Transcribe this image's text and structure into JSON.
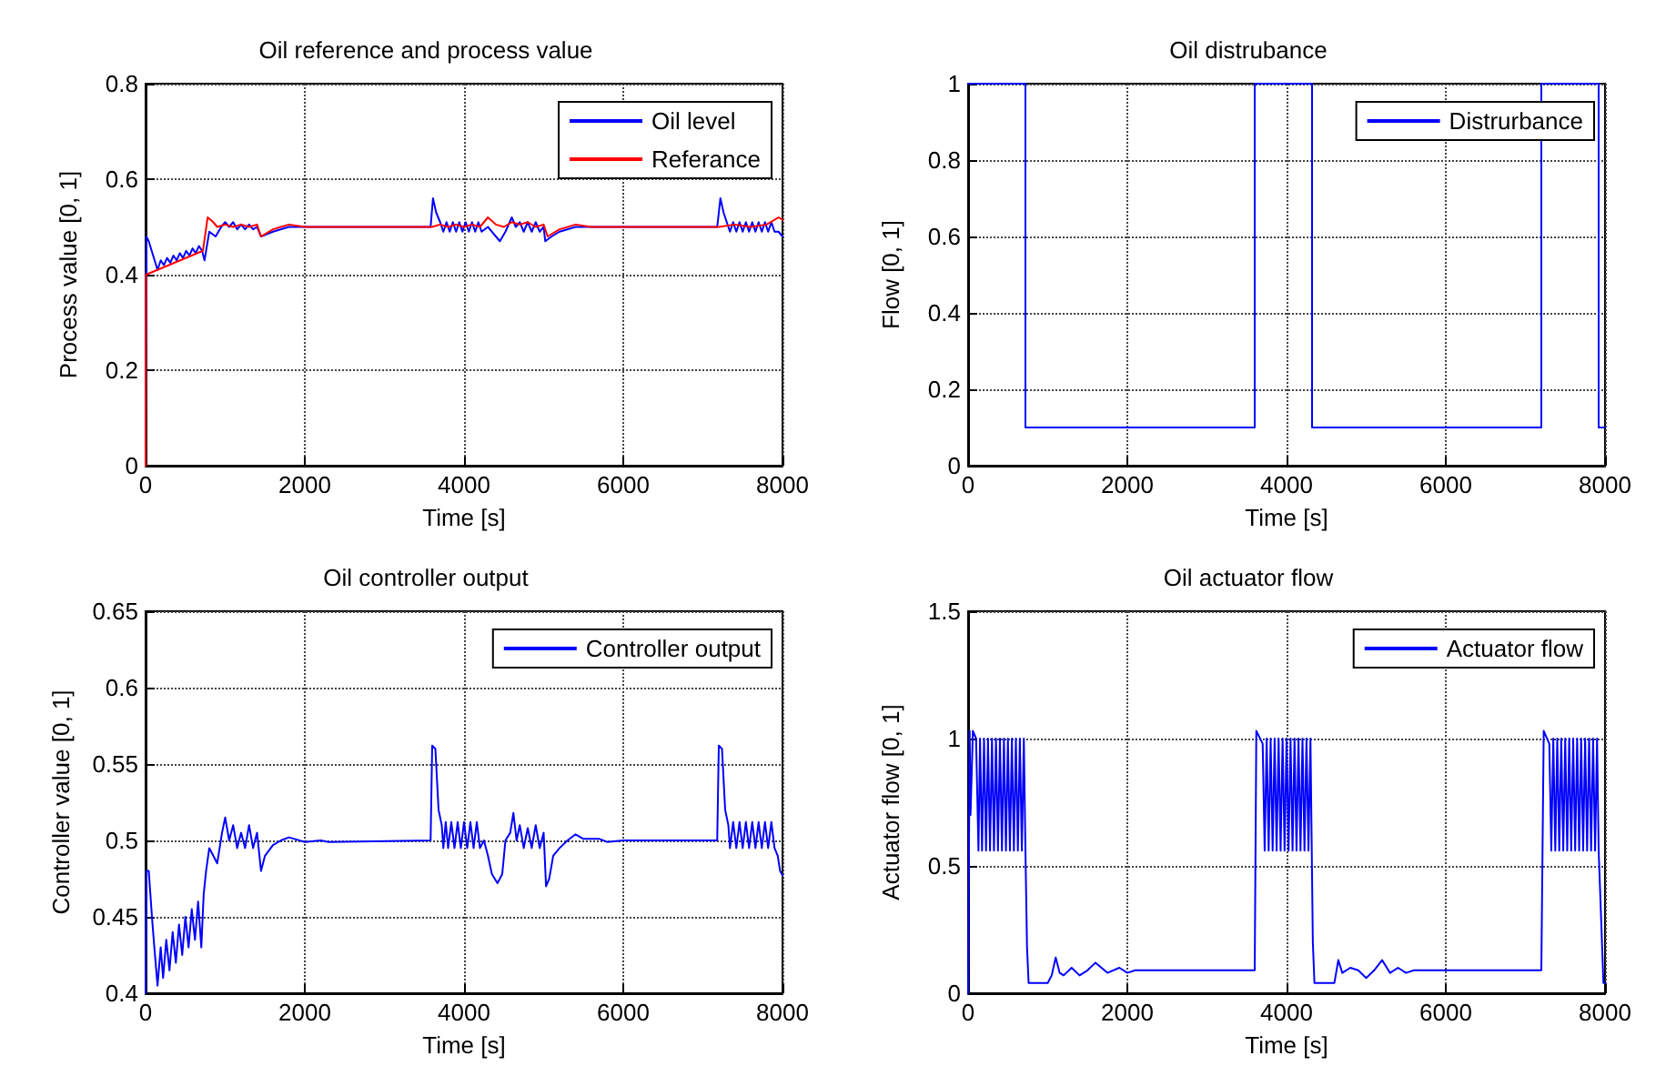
{
  "chart_data": [
    {
      "type": "line",
      "title": "Oil reference and process value",
      "xlabel": "Time [s]",
      "ylabel": "Process value [0, 1]",
      "xlim": [
        0,
        8000
      ],
      "xticks": [
        0,
        2000,
        4000,
        6000,
        8000
      ],
      "ylim": [
        0,
        0.8
      ],
      "yticks": [
        0,
        0.2,
        0.4,
        0.6,
        0.8
      ],
      "grid": true,
      "legend": "top right",
      "marker": "none",
      "line_style": "solid",
      "series": [
        {
          "name": "Oil level",
          "color": "#0000ff",
          "x": [
            0,
            10,
            40,
            150,
            190,
            230,
            270,
            310,
            350,
            390,
            430,
            470,
            510,
            550,
            590,
            630,
            670,
            710,
            740,
            800,
            880,
            950,
            1000,
            1050,
            1100,
            1150,
            1200,
            1250,
            1300,
            1350,
            1400,
            1450,
            1600,
            1800,
            2000,
            3580,
            3610,
            3650,
            3700,
            3740,
            3780,
            3820,
            3860,
            3900,
            3940,
            3980,
            4020,
            4060,
            4100,
            4140,
            4180,
            4220,
            4300,
            4400,
            4450,
            4520,
            4600,
            4650,
            4700,
            4750,
            4800,
            4850,
            4900,
            4950,
            5000,
            5020,
            5100,
            5200,
            5400,
            5600,
            7180,
            7220,
            7260,
            7300,
            7340,
            7380,
            7420,
            7460,
            7500,
            7540,
            7580,
            7620,
            7660,
            7700,
            7740,
            7780,
            7820,
            7860,
            7900,
            7950,
            8000
          ],
          "values": [
            0,
            0.48,
            0.47,
            0.41,
            0.43,
            0.42,
            0.435,
            0.425,
            0.44,
            0.43,
            0.445,
            0.435,
            0.45,
            0.44,
            0.455,
            0.445,
            0.46,
            0.45,
            0.43,
            0.49,
            0.48,
            0.5,
            0.51,
            0.5,
            0.51,
            0.495,
            0.505,
            0.495,
            0.505,
            0.495,
            0.5,
            0.48,
            0.49,
            0.5,
            0.5,
            0.5,
            0.56,
            0.53,
            0.51,
            0.49,
            0.51,
            0.49,
            0.51,
            0.49,
            0.51,
            0.49,
            0.51,
            0.49,
            0.51,
            0.49,
            0.51,
            0.49,
            0.5,
            0.48,
            0.47,
            0.49,
            0.52,
            0.5,
            0.51,
            0.49,
            0.51,
            0.49,
            0.51,
            0.49,
            0.5,
            0.47,
            0.48,
            0.49,
            0.5,
            0.5,
            0.5,
            0.56,
            0.53,
            0.51,
            0.49,
            0.51,
            0.49,
            0.51,
            0.49,
            0.51,
            0.49,
            0.51,
            0.49,
            0.51,
            0.49,
            0.51,
            0.49,
            0.51,
            0.49,
            0.49,
            0.48
          ]
        },
        {
          "name": "Referance",
          "color": "#ff0000",
          "x": [
            0,
            5,
            720,
            780,
            850,
            900,
            1000,
            1100,
            1200,
            1300,
            1400,
            1450,
            1600,
            1700,
            1800,
            2000,
            2200,
            3600,
            3700,
            3800,
            3900,
            4000,
            4100,
            4200,
            4300,
            4400,
            4500,
            4600,
            4700,
            4800,
            4900,
            5000,
            5050,
            5200,
            5400,
            5600,
            7200,
            7400,
            7600,
            7800,
            7950,
            8000
          ],
          "values": [
            0,
            0.4,
            0.45,
            0.52,
            0.51,
            0.5,
            0.505,
            0.5,
            0.505,
            0.5,
            0.505,
            0.48,
            0.495,
            0.5,
            0.505,
            0.5,
            0.5,
            0.5,
            0.505,
            0.5,
            0.505,
            0.5,
            0.505,
            0.5,
            0.52,
            0.505,
            0.5,
            0.51,
            0.505,
            0.51,
            0.5,
            0.505,
            0.48,
            0.495,
            0.505,
            0.5,
            0.5,
            0.505,
            0.5,
            0.505,
            0.52,
            0.515
          ]
        }
      ]
    },
    {
      "type": "step",
      "title": "Oil distrubance",
      "xlabel": "Time [s]",
      "ylabel": "Flow [0, 1]",
      "xlim": [
        0,
        8000
      ],
      "xticks": [
        0,
        2000,
        4000,
        6000,
        8000
      ],
      "ylim": [
        0,
        1
      ],
      "yticks": [
        0,
        0.2,
        0.4,
        0.6,
        0.8,
        1
      ],
      "grid": true,
      "legend": "top right",
      "marker": "none",
      "line_style": "solid",
      "series": [
        {
          "name": "Distrurbance",
          "color": "#0000ff",
          "x": [
            0,
            720,
            3600,
            4320,
            7200,
            7920,
            8000
          ],
          "values": [
            1,
            0.1,
            1,
            0.1,
            1,
            0.1,
            0.1
          ]
        }
      ]
    },
    {
      "type": "line",
      "title": "Oil controller output",
      "xlabel": "Time [s]",
      "ylabel": "Controller value [0, 1]",
      "xlim": [
        0,
        8000
      ],
      "xticks": [
        0,
        2000,
        4000,
        6000,
        8000
      ],
      "ylim": [
        0.4,
        0.65
      ],
      "yticks": [
        0.4,
        0.45,
        0.5,
        0.55,
        0.6,
        0.65
      ],
      "grid": true,
      "legend": "top right",
      "marker": "none",
      "line_style": "solid",
      "series": [
        {
          "name": "Controller output",
          "color": "#0000ff",
          "x": [
            0,
            10,
            40,
            80,
            110,
            150,
            190,
            220,
            260,
            300,
            340,
            380,
            420,
            460,
            500,
            540,
            580,
            620,
            660,
            700,
            730,
            760,
            800,
            850,
            900,
            960,
            1000,
            1050,
            1100,
            1150,
            1200,
            1250,
            1300,
            1350,
            1400,
            1450,
            1500,
            1600,
            1700,
            1800,
            2000,
            2200,
            2300,
            3580,
            3600,
            3640,
            3680,
            3720,
            3740,
            3770,
            3800,
            3840,
            3880,
            3920,
            3960,
            4000,
            4040,
            4080,
            4120,
            4160,
            4200,
            4250,
            4300,
            4350,
            4420,
            4480,
            4520,
            4580,
            4620,
            4660,
            4700,
            4750,
            4800,
            4850,
            4900,
            4950,
            5000,
            5030,
            5070,
            5120,
            5200,
            5300,
            5400,
            5500,
            5700,
            5800,
            6000,
            7180,
            7200,
            7240,
            7280,
            7320,
            7340,
            7380,
            7420,
            7460,
            7500,
            7540,
            7580,
            7620,
            7660,
            7700,
            7740,
            7780,
            7820,
            7860,
            7900,
            7940,
            7970,
            8000
          ],
          "values": [
            0.4,
            0.48,
            0.48,
            0.45,
            0.43,
            0.405,
            0.43,
            0.41,
            0.435,
            0.415,
            0.44,
            0.42,
            0.445,
            0.425,
            0.45,
            0.43,
            0.455,
            0.435,
            0.46,
            0.43,
            0.465,
            0.48,
            0.495,
            0.49,
            0.485,
            0.505,
            0.515,
            0.5,
            0.51,
            0.495,
            0.505,
            0.495,
            0.51,
            0.495,
            0.505,
            0.48,
            0.49,
            0.497,
            0.5,
            0.502,
            0.499,
            0.5,
            0.499,
            0.5,
            0.562,
            0.56,
            0.52,
            0.51,
            0.495,
            0.512,
            0.495,
            0.512,
            0.495,
            0.512,
            0.495,
            0.512,
            0.495,
            0.512,
            0.495,
            0.512,
            0.495,
            0.5,
            0.49,
            0.478,
            0.472,
            0.478,
            0.5,
            0.505,
            0.518,
            0.5,
            0.51,
            0.495,
            0.508,
            0.495,
            0.51,
            0.495,
            0.505,
            0.47,
            0.475,
            0.49,
            0.495,
            0.5,
            0.504,
            0.501,
            0.501,
            0.499,
            0.5,
            0.5,
            0.562,
            0.56,
            0.52,
            0.51,
            0.495,
            0.512,
            0.495,
            0.512,
            0.495,
            0.512,
            0.495,
            0.512,
            0.495,
            0.512,
            0.495,
            0.512,
            0.495,
            0.512,
            0.495,
            0.49,
            0.48,
            0.477
          ]
        }
      ]
    },
    {
      "type": "line",
      "title": "Oil actuator flow",
      "xlabel": "Time [s]",
      "ylabel": "Actuator flow [0, 1]",
      "xlim": [
        0,
        8000
      ],
      "xticks": [
        0,
        2000,
        4000,
        6000,
        8000
      ],
      "ylim": [
        0,
        1.5
      ],
      "yticks": [
        0,
        0.5,
        1,
        1.5
      ],
      "grid": true,
      "legend": "top right",
      "marker": "none",
      "line_style": "solid",
      "series": [
        {
          "name": "Actuator flow",
          "color": "#0000ff",
          "x": [
            0,
            20,
            30,
            60,
            100,
            130,
            150,
            175,
            200,
            225,
            250,
            275,
            300,
            325,
            350,
            375,
            400,
            425,
            450,
            475,
            500,
            525,
            550,
            575,
            600,
            625,
            650,
            675,
            700,
            720,
            740,
            760,
            1000,
            1050,
            1100,
            1150,
            1200,
            1300,
            1400,
            1500,
            1600,
            1750,
            1900,
            2000,
            2100,
            3600,
            3620,
            3700,
            3725,
            3750,
            3775,
            3800,
            3825,
            3850,
            3875,
            3900,
            3925,
            3950,
            3975,
            4000,
            4025,
            4050,
            4075,
            4100,
            4125,
            4150,
            4175,
            4200,
            4225,
            4250,
            4275,
            4300,
            4330,
            4350,
            4600,
            4650,
            4700,
            4800,
            4900,
            5000,
            5100,
            5200,
            5300,
            5400,
            5500,
            5600,
            7200,
            7230,
            7300,
            7325,
            7350,
            7375,
            7400,
            7425,
            7450,
            7475,
            7500,
            7525,
            7550,
            7575,
            7600,
            7625,
            7650,
            7675,
            7700,
            7725,
            7750,
            7775,
            7800,
            7825,
            7850,
            7875,
            7900,
            7920,
            7950,
            7980,
            8000
          ],
          "values": [
            0,
            1.03,
            0.7,
            1.03,
            1.0,
            0.56,
            1.0,
            0.56,
            1.0,
            0.56,
            1.0,
            0.56,
            1.0,
            0.56,
            1.0,
            0.56,
            1.0,
            0.56,
            1.0,
            0.56,
            1.0,
            0.56,
            1.0,
            0.56,
            1.0,
            0.56,
            1.0,
            0.56,
            1.0,
            0.56,
            0.18,
            0.04,
            0.04,
            0.07,
            0.14,
            0.08,
            0.07,
            0.1,
            0.07,
            0.09,
            0.12,
            0.08,
            0.1,
            0.08,
            0.09,
            0.09,
            1.03,
            0.98,
            0.56,
            1.0,
            0.56,
            1.0,
            0.56,
            1.0,
            0.56,
            1.0,
            0.56,
            1.0,
            0.56,
            1.0,
            0.56,
            1.0,
            0.56,
            1.0,
            0.56,
            1.0,
            0.56,
            1.0,
            0.56,
            1.0,
            0.56,
            1.0,
            0.2,
            0.04,
            0.04,
            0.13,
            0.08,
            0.1,
            0.09,
            0.06,
            0.09,
            0.13,
            0.08,
            0.1,
            0.08,
            0.09,
            0.09,
            1.03,
            0.98,
            0.56,
            1.0,
            0.56,
            1.0,
            0.56,
            1.0,
            0.56,
            1.0,
            0.56,
            1.0,
            0.56,
            1.0,
            0.56,
            1.0,
            0.56,
            1.0,
            0.56,
            1.0,
            0.56,
            1.0,
            0.56,
            1.0,
            0.56,
            1.0,
            0.56,
            0.3,
            0.04,
            0.04
          ]
        }
      ]
    }
  ]
}
